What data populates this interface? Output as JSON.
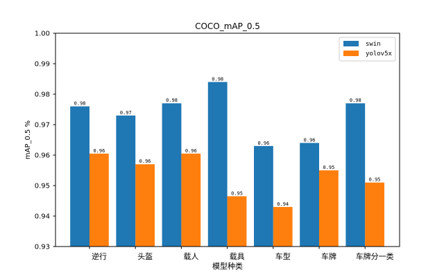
{
  "chart_data": {
    "type": "bar",
    "title": "COCO_mAP_0.5",
    "xlabel": "模型种类",
    "ylabel": "mAP_0.5 %",
    "categories": [
      "逆行",
      "头盔",
      "载人",
      "载具",
      "车型",
      "车牌",
      "车牌分一类"
    ],
    "series": [
      {
        "name": "swin",
        "color": "#1f77b4",
        "values": [
          0.976,
          0.973,
          0.977,
          0.984,
          0.963,
          0.964,
          0.977
        ],
        "labels": [
          "0.98",
          "0.97",
          "0.98",
          "0.98",
          "0.96",
          "0.96",
          "0.98"
        ]
      },
      {
        "name": "yolov5x",
        "color": "#ff7f0e",
        "values": [
          0.9605,
          0.957,
          0.9605,
          0.9465,
          0.943,
          0.955,
          0.951
        ],
        "labels": [
          "0.96",
          "0.96",
          "0.96",
          "0.95",
          "0.94",
          "0.95",
          "0.95"
        ]
      }
    ],
    "ylim": [
      0.93,
      1.0
    ],
    "yticks": [
      "0.93",
      "0.94",
      "0.95",
      "0.96",
      "0.97",
      "0.98",
      "0.99",
      "1.00"
    ],
    "legend": "top-right",
    "grid": false
  }
}
